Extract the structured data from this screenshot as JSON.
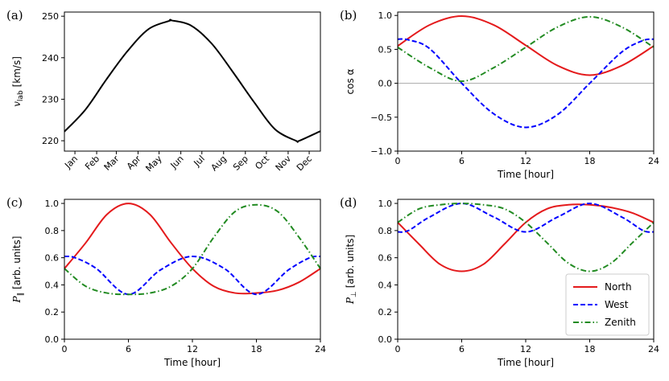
{
  "chart_data": [
    {
      "panel": "(a)",
      "type": "line",
      "ylabel": "v_lab [km/s]",
      "ylabel_main": "v",
      "ylabel_sub": "lab",
      "ylabel_unit": "[km/s]",
      "ylim": [
        217.5,
        251
      ],
      "yticks": [
        220,
        230,
        240,
        250
      ],
      "xlim": [
        0,
        365
      ],
      "xticks": [
        15,
        46,
        74,
        105,
        135,
        166,
        196,
        227,
        258,
        288,
        319,
        349
      ],
      "xtick_labels": [
        "Jan",
        "Feb",
        "Mar",
        "Apr",
        "May",
        "Jun",
        "Jul",
        "Aug",
        "Sep",
        "Oct",
        "Nov",
        "Dec"
      ],
      "grid": false,
      "series": [
        {
          "color": "#000000",
          "style": "solid",
          "x": [
            0,
            30,
            60,
            90,
            120,
            150,
            152,
            180,
            210,
            240,
            270,
            300,
            330,
            335,
            365
          ],
          "y": [
            222.2,
            227.5,
            234.8,
            241.6,
            246.9,
            248.9,
            249.0,
            247.8,
            243.4,
            236.6,
            229.4,
            222.8,
            220.0,
            220.0,
            222.3
          ]
        }
      ]
    },
    {
      "panel": "(b)",
      "type": "line",
      "xlabel": "Time [hour]",
      "ylabel": "cos α",
      "xlim": [
        0,
        24
      ],
      "ylim": [
        -1.0,
        1.05
      ],
      "xticks": [
        0,
        6,
        12,
        18,
        24
      ],
      "yticks": [
        -1.0,
        -0.5,
        0.0,
        0.5,
        1.0
      ],
      "ytick_labels": [
        "−1.0",
        "−0.5",
        "0.0",
        "0.5",
        "1.0"
      ],
      "hline": 0,
      "series": [
        {
          "name": "North",
          "color": "#e41a1c",
          "style": "solid",
          "x": [
            0,
            3,
            6,
            9,
            12,
            15,
            18,
            21,
            24
          ],
          "y": [
            0.55,
            0.86,
            0.99,
            0.86,
            0.56,
            0.26,
            0.12,
            0.26,
            0.55
          ]
        },
        {
          "name": "West",
          "color": "#0000ff",
          "style": "dashed",
          "x": [
            0,
            1,
            3,
            6,
            9,
            12,
            15,
            18,
            21,
            23,
            24
          ],
          "y": [
            0.65,
            0.64,
            0.51,
            0.0,
            -0.45,
            -0.65,
            -0.46,
            0.0,
            0.46,
            0.63,
            0.65
          ]
        },
        {
          "name": "Zenith",
          "color": "#228b22",
          "style": "dashdot",
          "x": [
            0,
            3,
            6,
            9,
            12,
            15,
            18,
            21,
            24
          ],
          "y": [
            0.53,
            0.23,
            0.03,
            0.23,
            0.53,
            0.83,
            0.98,
            0.83,
            0.53
          ]
        }
      ]
    },
    {
      "panel": "(c)",
      "type": "line",
      "xlabel": "Time [hour]",
      "ylabel": "P_∥ [arb. units]",
      "ylabel_main": "P",
      "ylabel_sub": "∥",
      "ylabel_unit": "[arb. units]",
      "xlim": [
        0,
        24
      ],
      "ylim": [
        0.0,
        1.03
      ],
      "xticks": [
        0,
        6,
        12,
        18,
        24
      ],
      "yticks": [
        0.0,
        0.2,
        0.4,
        0.6,
        0.8,
        1.0
      ],
      "series": [
        {
          "name": "North",
          "color": "#e41a1c",
          "style": "solid",
          "x": [
            0,
            2,
            4,
            6,
            8,
            10,
            12,
            14,
            16,
            18,
            20,
            22,
            24
          ],
          "y": [
            0.52,
            0.71,
            0.92,
            1.0,
            0.92,
            0.71,
            0.52,
            0.39,
            0.34,
            0.34,
            0.36,
            0.42,
            0.52
          ]
        },
        {
          "name": "West",
          "color": "#0000ff",
          "style": "dashed",
          "x": [
            0,
            1,
            3,
            6,
            9,
            12,
            15,
            18,
            21,
            23,
            24
          ],
          "y": [
            0.61,
            0.6,
            0.52,
            0.33,
            0.51,
            0.61,
            0.52,
            0.33,
            0.51,
            0.6,
            0.61
          ]
        },
        {
          "name": "Zenith",
          "color": "#228b22",
          "style": "dashdot",
          "x": [
            0,
            2,
            4,
            6,
            8,
            10,
            12,
            14,
            16,
            18,
            20,
            22,
            24
          ],
          "y": [
            0.52,
            0.39,
            0.34,
            0.33,
            0.34,
            0.39,
            0.52,
            0.75,
            0.94,
            0.99,
            0.94,
            0.75,
            0.52
          ]
        }
      ]
    },
    {
      "panel": "(d)",
      "type": "line",
      "xlabel": "Time [hour]",
      "ylabel": "P_⊥ [arb. units]",
      "ylabel_main": "P",
      "ylabel_sub": "⊥",
      "ylabel_unit": "[arb. units]",
      "xlim": [
        0,
        24
      ],
      "ylim": [
        0.0,
        1.03
      ],
      "xticks": [
        0,
        6,
        12,
        18,
        24
      ],
      "yticks": [
        0.0,
        0.2,
        0.4,
        0.6,
        0.8,
        1.0
      ],
      "legend": {
        "placement": "lower-right",
        "entries": [
          "North",
          "West",
          "Zenith"
        ]
      },
      "series": [
        {
          "name": "North",
          "color": "#e41a1c",
          "style": "solid",
          "x": [
            0,
            2,
            4,
            6,
            8,
            10,
            12,
            14,
            16,
            18,
            20,
            22,
            24
          ],
          "y": [
            0.86,
            0.7,
            0.55,
            0.5,
            0.55,
            0.7,
            0.86,
            0.96,
            0.99,
            0.99,
            0.97,
            0.93,
            0.86
          ]
        },
        {
          "name": "West",
          "color": "#0000ff",
          "style": "dashed",
          "x": [
            0,
            1,
            3,
            6,
            9,
            12,
            15,
            18,
            21,
            23,
            24
          ],
          "y": [
            0.79,
            0.8,
            0.9,
            1.0,
            0.9,
            0.79,
            0.9,
            1.0,
            0.9,
            0.8,
            0.79
          ]
        },
        {
          "name": "Zenith",
          "color": "#228b22",
          "style": "dashdot",
          "x": [
            0,
            2,
            4,
            6,
            8,
            10,
            12,
            14,
            16,
            18,
            20,
            22,
            24
          ],
          "y": [
            0.86,
            0.96,
            0.99,
            1.0,
            0.99,
            0.96,
            0.86,
            0.71,
            0.56,
            0.5,
            0.56,
            0.71,
            0.86
          ]
        }
      ]
    }
  ]
}
